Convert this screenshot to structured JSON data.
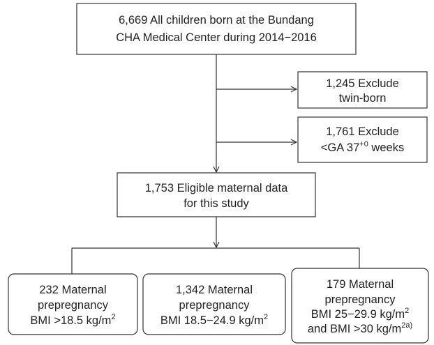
{
  "nodes": [
    {
      "lines": [
        [
          {
            "text": "6,669 All children born at the Bundang"
          }
        ],
        [
          {
            "text": "CHA Medical Center during 2014−2016"
          }
        ]
      ]
    },
    {
      "lines": [
        [
          {
            "text": "1,245 Exclude"
          }
        ],
        [
          {
            "text": "twin-born"
          }
        ]
      ]
    },
    {
      "lines": [
        [
          {
            "text": "1,761 Exclude"
          }
        ],
        [
          {
            "text": "<GA 37"
          },
          {
            "sup": "+0"
          },
          {
            "text": " weeks"
          }
        ]
      ]
    },
    {
      "lines": [
        [
          {
            "text": "1,753 Eligible maternal data"
          }
        ],
        [
          {
            "text": "for this study"
          }
        ]
      ]
    },
    {
      "lines": [
        [
          {
            "text": "232 Maternal"
          }
        ],
        [
          {
            "text": "prepregnancy"
          }
        ],
        [
          {
            "text": "BMI >18.5 kg/m"
          },
          {
            "sup": "2"
          }
        ]
      ]
    },
    {
      "lines": [
        [
          {
            "text": "1,342 Maternal"
          }
        ],
        [
          {
            "text": "prepregnancy"
          }
        ],
        [
          {
            "text": "BMI 18.5−24.9 kg/m"
          },
          {
            "sup": "2"
          }
        ]
      ]
    },
    {
      "lines": [
        [
          {
            "text": "179 Maternal"
          }
        ],
        [
          {
            "text": "prepregnancy"
          }
        ],
        [
          {
            "text": "BMI 25−29.9 kg/m"
          },
          {
            "sup": "2"
          }
        ],
        [
          {
            "text": "and BMI >30 kg/m"
          },
          {
            "sup": "2a)"
          }
        ]
      ]
    }
  ]
}
